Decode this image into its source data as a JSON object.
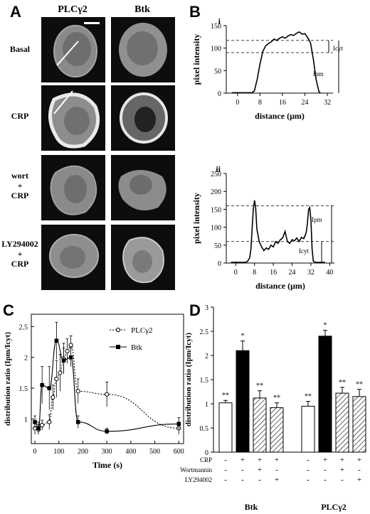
{
  "panel_labels": {
    "a": "A",
    "b": "B",
    "c": "C",
    "d": "D"
  },
  "micro": {
    "col_headers": [
      "PLCγ2",
      "Btk"
    ],
    "rows": [
      {
        "label": [
          "Basal"
        ]
      },
      {
        "label": [
          "CRP"
        ]
      },
      {
        "label": [
          "wort",
          "+",
          "CRP"
        ]
      },
      {
        "label": [
          "LY294002",
          "+",
          "CRP"
        ]
      }
    ]
  },
  "chart_data": [
    {
      "id": "B-i",
      "type": "line",
      "panel_tag": "i",
      "xlabel": "distance (μm)",
      "ylabel": "pixel intensity",
      "xlim": [
        -4,
        34
      ],
      "ylim": [
        0,
        150
      ],
      "xticks": [
        0,
        8,
        16,
        24,
        32
      ],
      "yticks": [
        0,
        50,
        100,
        150
      ],
      "x": [
        -2,
        0,
        2,
        4,
        5.2,
        6,
        7,
        8,
        9,
        10,
        11,
        12,
        13,
        14,
        15,
        16,
        17,
        18,
        19,
        20,
        21,
        22,
        23,
        24,
        25,
        26,
        27,
        28,
        29,
        29.5
      ],
      "y": [
        1,
        1,
        1,
        1,
        1,
        5,
        30,
        65,
        92,
        105,
        110,
        114,
        120,
        117,
        122,
        125,
        122,
        127,
        130,
        128,
        133,
        136,
        131,
        132,
        123,
        112,
        75,
        30,
        3,
        1
      ],
      "reflines": [
        {
          "y": 117,
          "label": "Icyt"
        },
        {
          "y": 90,
          "label": ""
        },
        {
          "y": 0,
          "label": "Ipm"
        }
      ],
      "annotations": [
        "Icyt",
        "Ipm"
      ]
    },
    {
      "id": "B-ii",
      "type": "line",
      "panel_tag": "ii",
      "xlabel": "distance (μm)",
      "ylabel": "pixel intensity",
      "xlim": [
        -4,
        42
      ],
      "ylim": [
        0,
        250
      ],
      "xticks": [
        0,
        8,
        16,
        24,
        32,
        40
      ],
      "yticks": [
        0,
        50,
        100,
        150,
        200,
        250
      ],
      "x": [
        -2,
        0,
        2,
        4,
        5,
        6,
        6.5,
        7,
        7.5,
        8,
        8.5,
        9,
        10,
        11,
        12,
        13,
        14,
        15,
        16,
        17,
        18,
        19,
        20,
        21,
        22,
        23,
        24,
        25,
        26,
        27,
        28,
        29,
        30,
        30.5,
        31,
        31.5,
        32,
        32.5,
        33,
        34,
        36,
        38
      ],
      "y": [
        2,
        2,
        2,
        2,
        4,
        15,
        40,
        95,
        150,
        175,
        155,
        95,
        60,
        45,
        35,
        42,
        38,
        50,
        45,
        60,
        55,
        65,
        70,
        88,
        60,
        55,
        65,
        62,
        70,
        60,
        72,
        68,
        85,
        110,
        150,
        155,
        120,
        40,
        5,
        2,
        2,
        2
      ],
      "reflines": [
        {
          "y": 160,
          "label": ""
        },
        {
          "y": 60,
          "label": ""
        },
        {
          "y": 0,
          "label": ""
        }
      ],
      "annotations": [
        "Ipm",
        "Icyt"
      ]
    },
    {
      "id": "C",
      "type": "line",
      "xlabel": "Time (s)",
      "ylabel": "distribution ratio (Ipm/Icyt)",
      "xlim": [
        -15,
        620
      ],
      "ylim": [
        0.6,
        2.7
      ],
      "xticks": [
        0,
        100,
        200,
        300,
        400,
        500,
        600
      ],
      "yticks": [
        1,
        1.5,
        2,
        2.5
      ],
      "series": [
        {
          "name": "PLCγ2",
          "style": "dashed",
          "marker": "open-circle",
          "x": [
            0,
            15,
            30,
            60,
            75,
            90,
            105,
            120,
            135,
            150,
            180,
            300,
            600
          ],
          "y": [
            0.85,
            0.83,
            0.9,
            0.95,
            1.35,
            1.65,
            1.75,
            1.98,
            2.1,
            2.2,
            1.45,
            1.4,
            0.85
          ],
          "err": [
            0.1,
            0.08,
            0.08,
            0.12,
            0.2,
            0.3,
            0.3,
            0.25,
            0.2,
            0.15,
            0.2,
            0.2,
            0.1
          ]
        },
        {
          "name": "Btk",
          "style": "solid",
          "marker": "filled-square",
          "x": [
            0,
            15,
            30,
            60,
            90,
            120,
            150,
            180,
            300,
            600
          ],
          "y": [
            0.95,
            0.85,
            1.55,
            1.5,
            2.27,
            1.95,
            2.0,
            0.95,
            0.8,
            0.92
          ],
          "err": [
            0.1,
            0.1,
            0.3,
            0.35,
            0.3,
            0.2,
            0.15,
            0.1,
            0.05,
            0.1
          ]
        }
      ]
    },
    {
      "id": "D",
      "type": "bar",
      "ylabel": "distribution ratio (Ipm/Icyt)",
      "ylim": [
        0,
        3
      ],
      "yticks": [
        0,
        0.5,
        1,
        1.5,
        2,
        2.5,
        3
      ],
      "groups": [
        "Btk",
        "PLCγ2"
      ],
      "values": [
        [
          1.02,
          2.1,
          1.12,
          0.92
        ],
        [
          0.95,
          2.4,
          1.22,
          1.15
        ]
      ],
      "errors": [
        [
          0.05,
          0.2,
          0.15,
          0.1
        ],
        [
          0.1,
          0.12,
          0.12,
          0.15
        ]
      ],
      "fills": [
        "white",
        "black",
        "hatch",
        "hatch"
      ],
      "stars": [
        [
          "**",
          "*",
          "**",
          "**"
        ],
        [
          "**",
          "*",
          "**",
          "**"
        ]
      ],
      "conditions": [
        {
          "name": "CRP",
          "marks": [
            "-",
            "+",
            "+",
            "+",
            "-",
            "+",
            "+",
            "+"
          ]
        },
        {
          "name": "Wortmannin",
          "marks": [
            "-",
            "-",
            "+",
            "-",
            "-",
            "-",
            "+",
            "-"
          ]
        },
        {
          "name": "LY294002",
          "marks": [
            "-",
            "-",
            "-",
            "+",
            "-",
            "-",
            "-",
            "+"
          ]
        }
      ]
    }
  ]
}
